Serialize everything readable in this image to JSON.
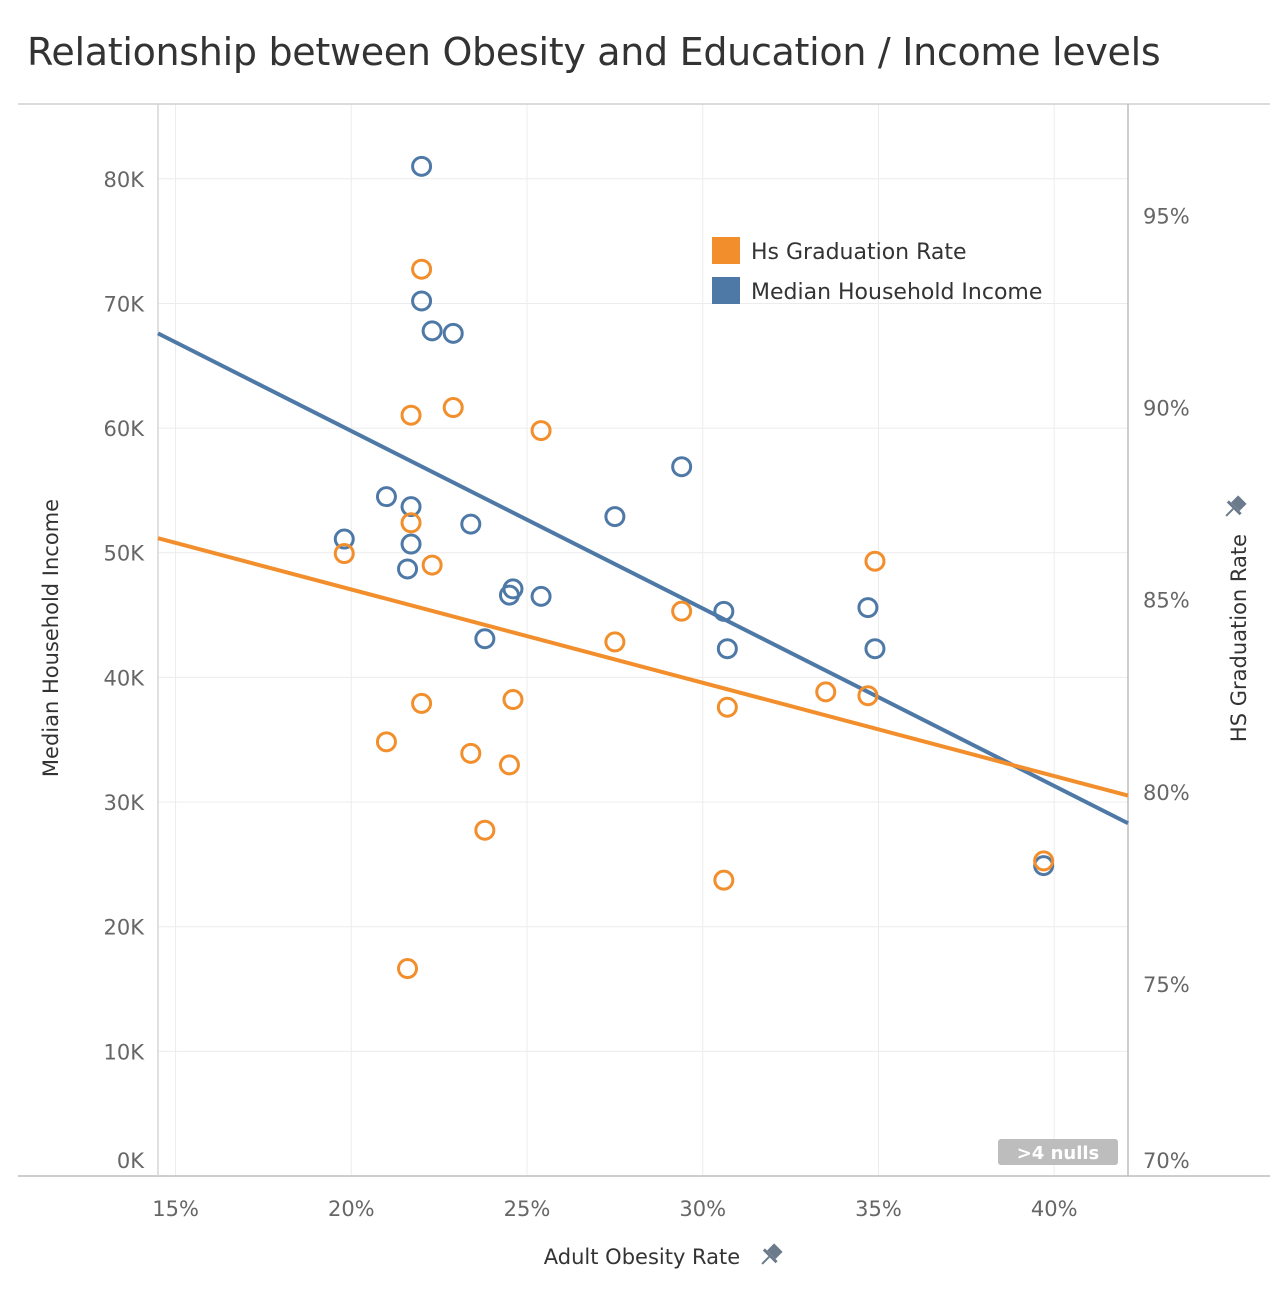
{
  "title": "Relationship between Obesity and Education / Income levels",
  "chart_data": {
    "type": "scatter",
    "title": "Relationship between Obesity and Education / Income levels",
    "xlabel": "Adult Obesity Rate",
    "ylabel_left": "Median Household Income",
    "ylabel_right": "HS Graduation Rate",
    "xlim": [
      0.145,
      0.421
    ],
    "ylim_left": [
      0,
      86000
    ],
    "ylim_right": [
      0.7,
      0.979
    ],
    "x_ticks": [
      0.15,
      0.2,
      0.25,
      0.3,
      0.35,
      0.4
    ],
    "x_tick_labels": [
      "15%",
      "20%",
      "25%",
      "30%",
      "35%",
      "40%"
    ],
    "y_left_ticks": [
      0,
      10000,
      20000,
      30000,
      40000,
      50000,
      60000,
      70000,
      80000
    ],
    "y_left_tick_labels": [
      "0K",
      "10K",
      "20K",
      "30K",
      "40K",
      "50K",
      "60K",
      "70K",
      "80K"
    ],
    "y_right_ticks": [
      0.7,
      0.75,
      0.8,
      0.85,
      0.9,
      0.95
    ],
    "y_right_tick_labels": [
      "70%",
      "75%",
      "80%",
      "85%",
      "90%",
      "95%"
    ],
    "legend": {
      "position": "top-right",
      "entries": [
        {
          "name": "Hs Graduation Rate",
          "color": "#f28e2b"
        },
        {
          "name": "Median Household Income",
          "color": "#4e79a7"
        }
      ]
    },
    "nulls_badge": ">4 nulls",
    "series": [
      {
        "name": "Median Household Income",
        "axis": "left",
        "color": "#4e79a7",
        "x": [
          0.22,
          0.22,
          0.223,
          0.229,
          0.198,
          0.21,
          0.217,
          0.217,
          0.216,
          0.234,
          0.245,
          0.246,
          0.254,
          0.238,
          0.294,
          0.275,
          0.306,
          0.307,
          0.347,
          0.349,
          0.397
        ],
        "y": [
          81000,
          70200,
          67800,
          67600,
          51100,
          54500,
          53700,
          50700,
          48700,
          52300,
          46600,
          47100,
          46500,
          43100,
          56900,
          52900,
          45300,
          42300,
          45600,
          42300,
          24900
        ],
        "trend": {
          "x": [
            0.145,
            0.421
          ],
          "y": [
            67600,
            28300
          ]
        }
      },
      {
        "name": "Hs Graduation Rate",
        "axis": "right",
        "color": "#f28e2b",
        "x": [
          0.22,
          0.217,
          0.229,
          0.254,
          0.217,
          0.198,
          0.223,
          0.22,
          0.21,
          0.234,
          0.245,
          0.246,
          0.238,
          0.216,
          0.275,
          0.294,
          0.307,
          0.306,
          0.335,
          0.347,
          0.349,
          0.397
        ],
        "y": [
          0.936,
          0.898,
          0.9,
          0.894,
          0.87,
          0.862,
          0.859,
          0.823,
          0.813,
          0.81,
          0.807,
          0.824,
          0.79,
          0.754,
          0.839,
          0.847,
          0.822,
          0.777,
          0.826,
          0.825,
          0.86,
          0.782
        ],
        "trend": {
          "x": [
            0.145,
            0.421
          ],
          "y": [
            0.866,
            0.799
          ]
        }
      }
    ]
  }
}
